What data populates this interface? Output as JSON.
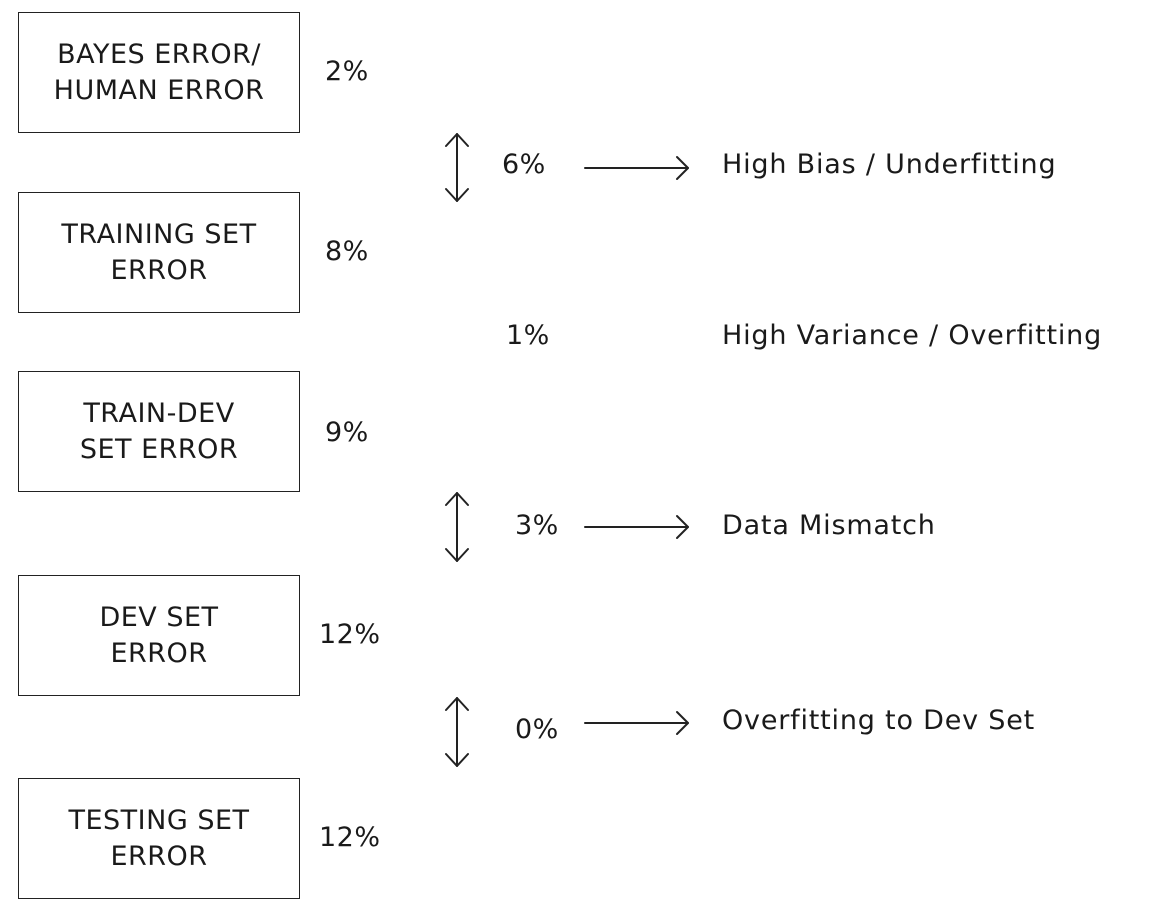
{
  "boxes": [
    {
      "text": "BAYES ERROR/\nHUMAN ERROR",
      "value": "2%"
    },
    {
      "text": "TRAINING SET\nERROR",
      "value": "8%"
    },
    {
      "text": "TRAIN-DEV\nSET ERROR",
      "value": "9%"
    },
    {
      "text": "DEV SET\nERROR",
      "value": "12%"
    },
    {
      "text": "TESTING SET\nERROR",
      "value": "12%"
    }
  ],
  "gaps": [
    {
      "diff": "6%",
      "label": "High Bias / Underfitting"
    },
    {
      "diff": "1%",
      "label": "High Variance / Overfitting"
    },
    {
      "diff": "3%",
      "label": "Data Mismatch"
    },
    {
      "diff": "0%",
      "label": "Overfitting to Dev Set"
    }
  ]
}
